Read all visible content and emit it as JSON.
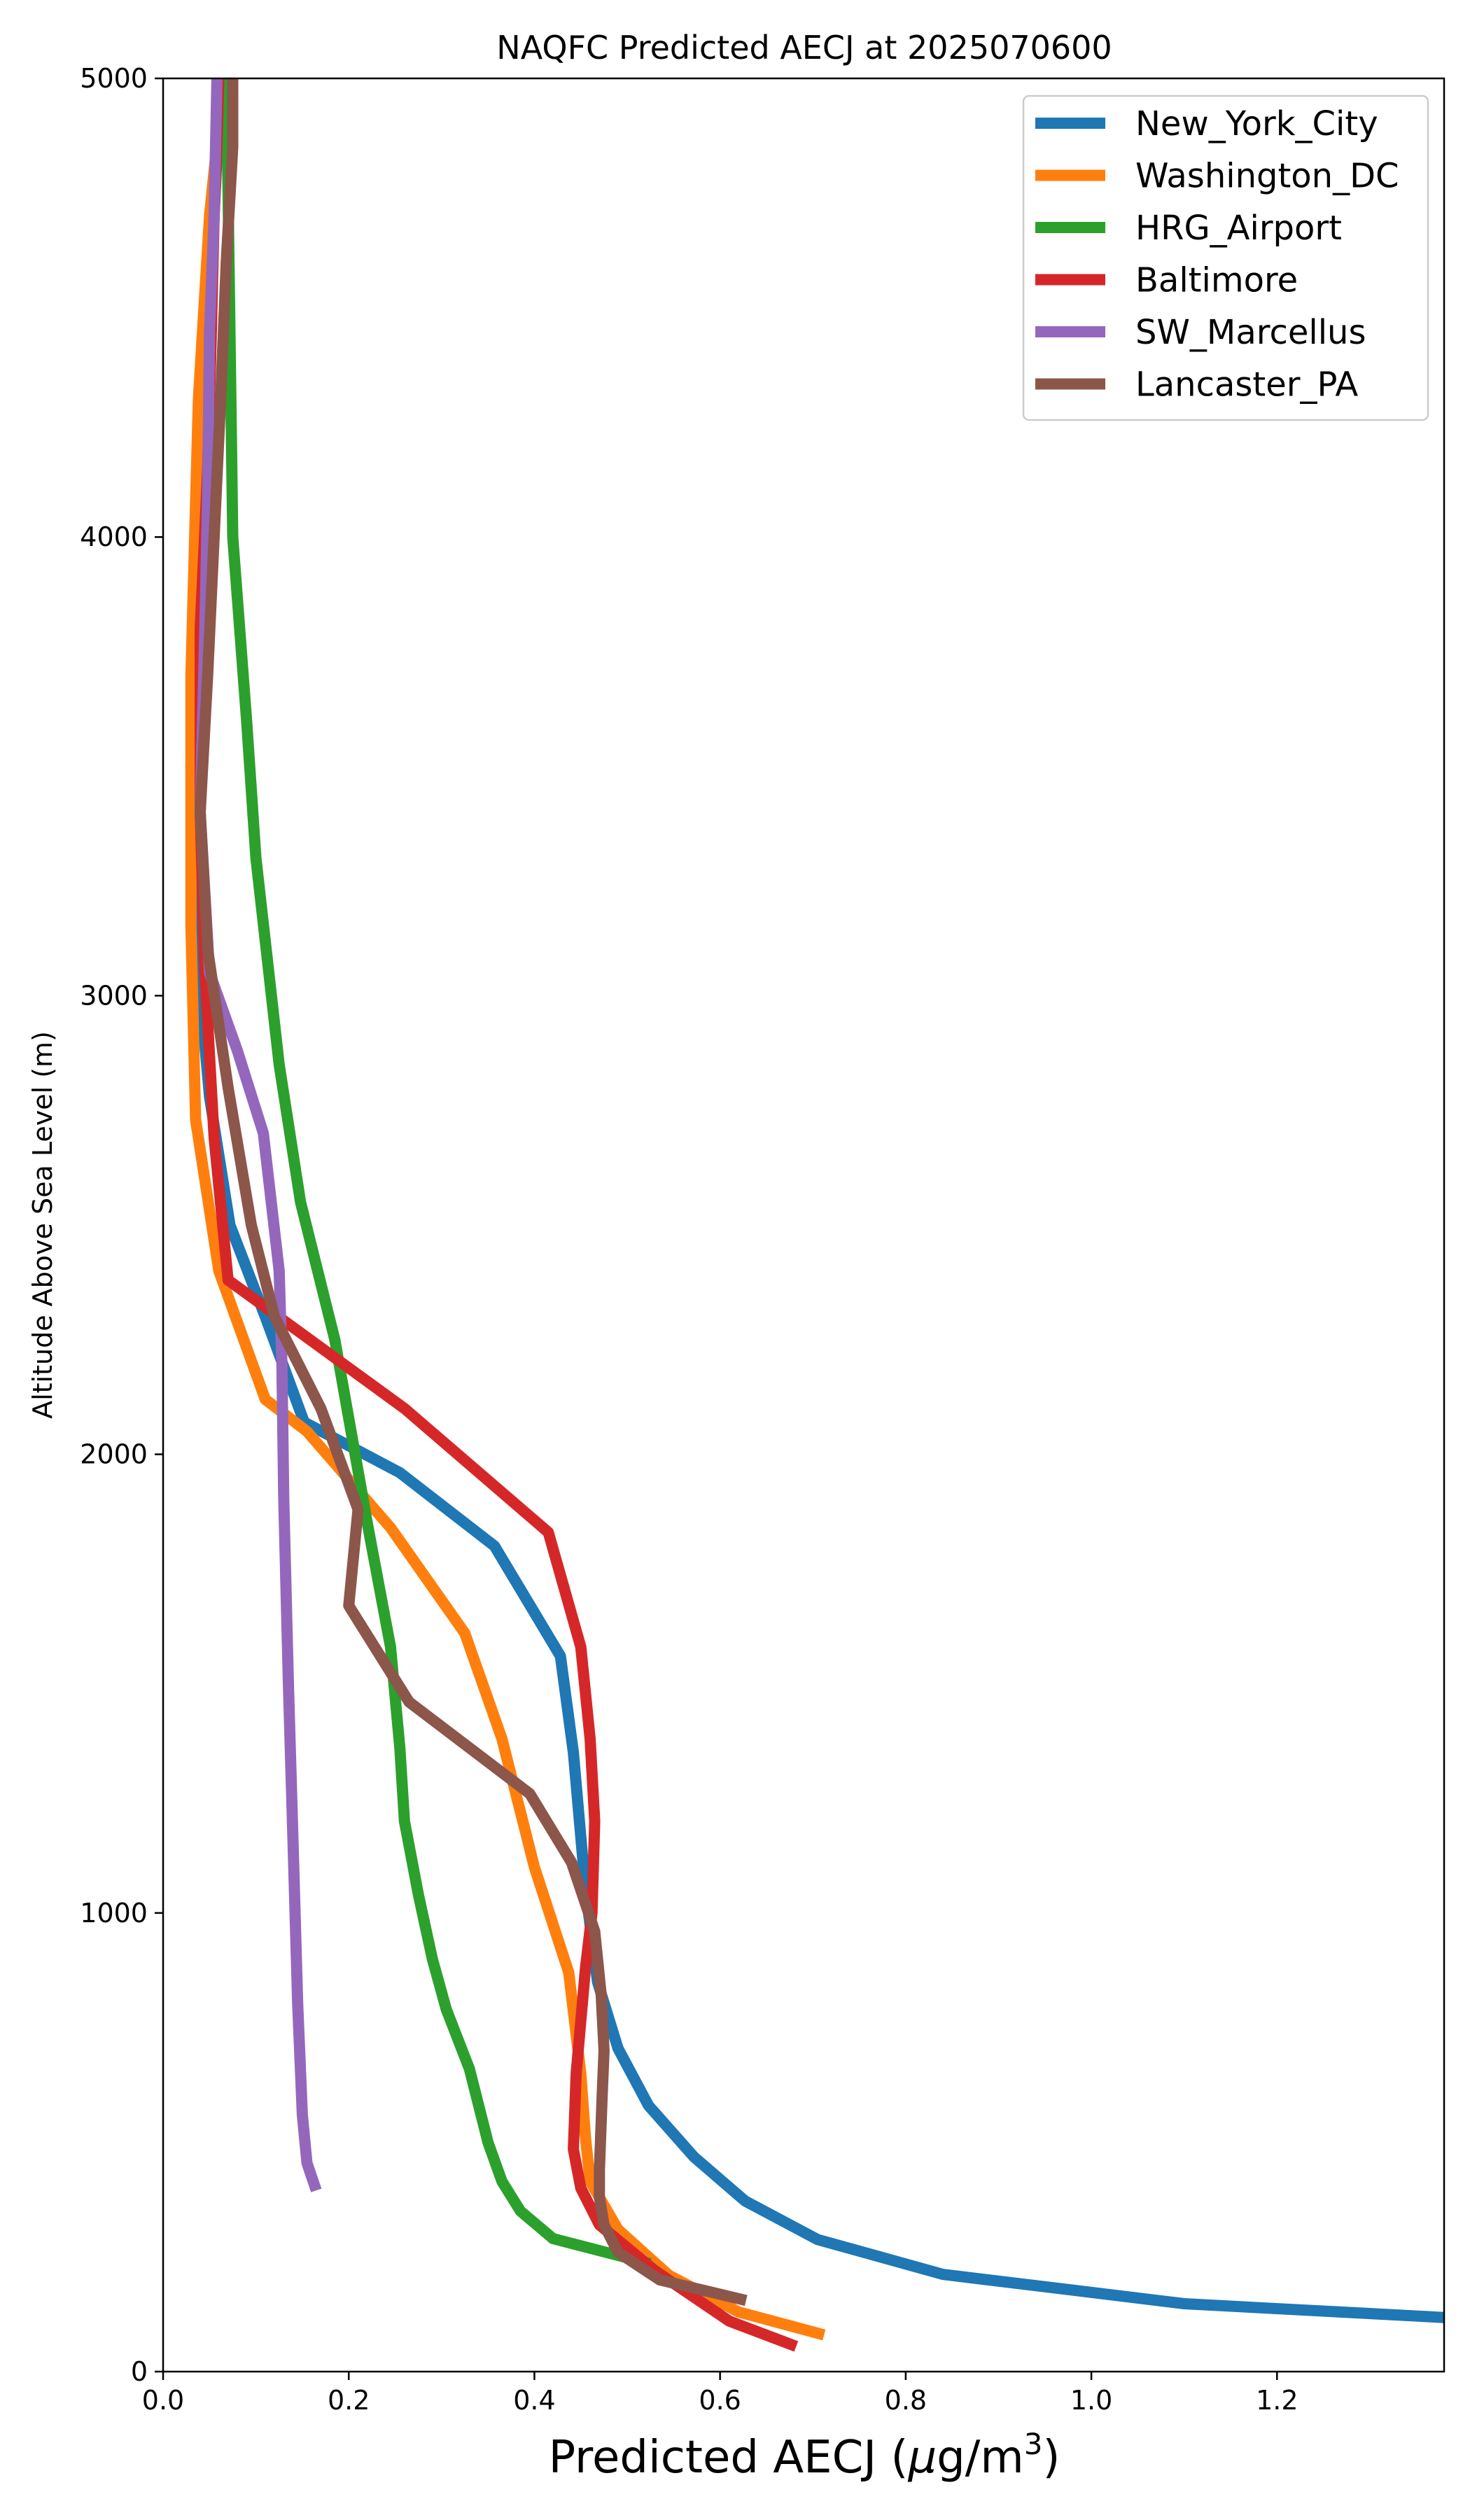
{
  "chart_data": {
    "type": "line",
    "title": "NAQFC Predicted AECJ at 2025070600",
    "xlabel_main": "Predicted AECJ (",
    "xlabel_mu": "μ",
    "xlabel_unit": "g/m",
    "xlabel_sup": "3",
    "xlabel_end": ")",
    "ylabel": "Altitude Above Sea Level (m)",
    "xlim": [
      0.0,
      1.38
    ],
    "ylim": [
      0,
      5000
    ],
    "xticks": [
      0.0,
      0.2,
      0.4,
      0.6,
      0.8,
      1.0,
      1.2
    ],
    "xtick_labels": [
      "0.0",
      "0.2",
      "0.4",
      "0.6",
      "0.8",
      "1.0",
      "1.2"
    ],
    "yticks": [
      0,
      1000,
      2000,
      3000,
      4000,
      5000
    ],
    "ytick_labels": [
      "0",
      "1000",
      "2000",
      "3000",
      "4000",
      "5000"
    ],
    "grid": false,
    "legend_position": "top-right",
    "series": [
      {
        "name": "New_York_City",
        "color": "#1f77b4",
        "points": [
          [
            1.38,
            118
          ],
          [
            1.1,
            148
          ],
          [
            0.84,
            212
          ],
          [
            0.705,
            288
          ],
          [
            0.627,
            372
          ],
          [
            0.572,
            468
          ],
          [
            0.523,
            580
          ],
          [
            0.49,
            705
          ],
          [
            0.468,
            850
          ],
          [
            0.455,
            1050
          ],
          [
            0.442,
            1350
          ],
          [
            0.428,
            1560
          ],
          [
            0.357,
            1800
          ],
          [
            0.255,
            1960
          ],
          [
            0.152,
            2070
          ],
          [
            0.11,
            2300
          ],
          [
            0.072,
            2500
          ],
          [
            0.05,
            2780
          ],
          [
            0.038,
            3050
          ],
          [
            0.03,
            3500
          ],
          [
            0.035,
            4000
          ],
          [
            0.045,
            4400
          ],
          [
            0.055,
            4700
          ],
          [
            0.062,
            5000
          ]
        ]
      },
      {
        "name": "Washington_DC",
        "color": "#ff7f0e",
        "points": [
          [
            0.712,
            80
          ],
          [
            0.62,
            130
          ],
          [
            0.545,
            210
          ],
          [
            0.49,
            310
          ],
          [
            0.46,
            415
          ],
          [
            0.455,
            510
          ],
          [
            0.45,
            650
          ],
          [
            0.437,
            870
          ],
          [
            0.4,
            1100
          ],
          [
            0.365,
            1380
          ],
          [
            0.325,
            1610
          ],
          [
            0.245,
            1840
          ],
          [
            0.155,
            2050
          ],
          [
            0.11,
            2120
          ],
          [
            0.06,
            2400
          ],
          [
            0.035,
            2730
          ],
          [
            0.03,
            3150
          ],
          [
            0.03,
            3700
          ],
          [
            0.038,
            4300
          ],
          [
            0.05,
            4700
          ],
          [
            0.06,
            4900
          ],
          [
            0.065,
            5000
          ]
        ]
      },
      {
        "name": "HRG_Airport",
        "color": "#2ca02c",
        "points": [
          [
            0.525,
            235
          ],
          [
            0.42,
            290
          ],
          [
            0.385,
            350
          ],
          [
            0.365,
            415
          ],
          [
            0.35,
            500
          ],
          [
            0.33,
            660
          ],
          [
            0.305,
            790
          ],
          [
            0.29,
            900
          ],
          [
            0.275,
            1040
          ],
          [
            0.26,
            1200
          ],
          [
            0.255,
            1360
          ],
          [
            0.245,
            1580
          ],
          [
            0.22,
            1850
          ],
          [
            0.185,
            2250
          ],
          [
            0.148,
            2550
          ],
          [
            0.125,
            2850
          ],
          [
            0.1,
            3300
          ],
          [
            0.09,
            3600
          ],
          [
            0.075,
            4000
          ],
          [
            0.072,
            4450
          ],
          [
            0.07,
            4750
          ],
          [
            0.068,
            5000
          ]
        ]
      },
      {
        "name": "Baltimore",
        "color": "#d62728",
        "points": [
          [
            0.682,
            55
          ],
          [
            0.61,
            110
          ],
          [
            0.53,
            220
          ],
          [
            0.47,
            320
          ],
          [
            0.45,
            400
          ],
          [
            0.442,
            485
          ],
          [
            0.445,
            650
          ],
          [
            0.455,
            880
          ],
          [
            0.462,
            1000
          ],
          [
            0.465,
            1200
          ],
          [
            0.46,
            1380
          ],
          [
            0.45,
            1580
          ],
          [
            0.415,
            1830
          ],
          [
            0.26,
            2100
          ],
          [
            0.07,
            2380
          ],
          [
            0.055,
            2690
          ],
          [
            0.045,
            3050
          ],
          [
            0.04,
            3400
          ],
          [
            0.04,
            3800
          ],
          [
            0.048,
            4150
          ],
          [
            0.052,
            4450
          ],
          [
            0.055,
            4700
          ],
          [
            0.058,
            4850
          ],
          [
            0.06,
            5000
          ]
        ]
      },
      {
        "name": "SW_Marcellus",
        "color": "#9467bd",
        "points": [
          [
            0.165,
            395
          ],
          [
            0.155,
            455
          ],
          [
            0.15,
            560
          ],
          [
            0.145,
            800
          ],
          [
            0.14,
            1150
          ],
          [
            0.135,
            1500
          ],
          [
            0.13,
            1900
          ],
          [
            0.128,
            2200
          ],
          [
            0.125,
            2400
          ],
          [
            0.108,
            2700
          ],
          [
            0.08,
            2880
          ],
          [
            0.05,
            3050
          ],
          [
            0.04,
            3400
          ],
          [
            0.045,
            3800
          ],
          [
            0.048,
            4100
          ],
          [
            0.05,
            4450
          ],
          [
            0.055,
            4700
          ],
          [
            0.058,
            5000
          ]
        ]
      },
      {
        "name": "Lancaster_PA",
        "color": "#8c564b",
        "points": [
          [
            0.628,
            155
          ],
          [
            0.535,
            200
          ],
          [
            0.49,
            260
          ],
          [
            0.475,
            320
          ],
          [
            0.47,
            380
          ],
          [
            0.47,
            440
          ],
          [
            0.473,
            600
          ],
          [
            0.475,
            700
          ],
          [
            0.472,
            820
          ],
          [
            0.465,
            960
          ],
          [
            0.44,
            1110
          ],
          [
            0.395,
            1260
          ],
          [
            0.265,
            1460
          ],
          [
            0.2,
            1670
          ],
          [
            0.21,
            1880
          ],
          [
            0.17,
            2100
          ],
          [
            0.12,
            2300
          ],
          [
            0.095,
            2500
          ],
          [
            0.07,
            2800
          ],
          [
            0.048,
            3100
          ],
          [
            0.04,
            3400
          ],
          [
            0.048,
            3700
          ],
          [
            0.055,
            4000
          ],
          [
            0.062,
            4300
          ],
          [
            0.068,
            4600
          ],
          [
            0.075,
            4850
          ],
          [
            0.075,
            5000
          ]
        ]
      }
    ]
  }
}
